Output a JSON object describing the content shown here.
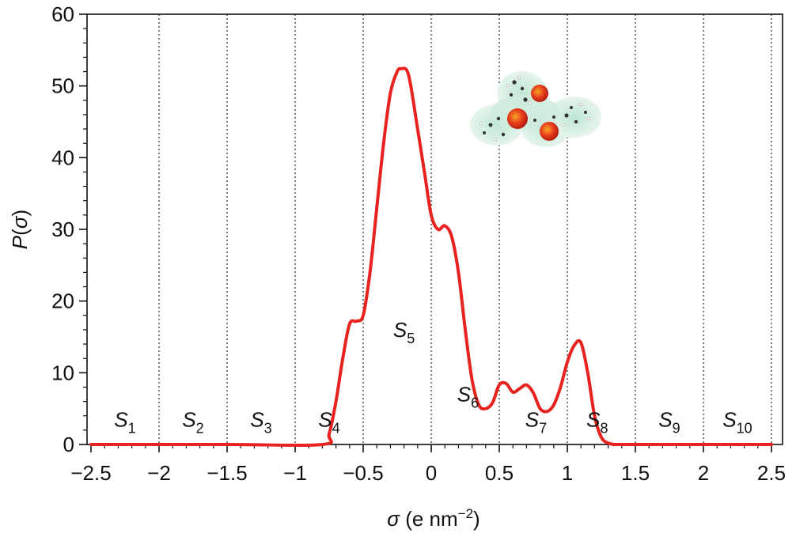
{
  "chart_data": {
    "type": "line",
    "xlabel_symbol": "σ",
    "xlabel_unit_text": " (e nm",
    "xlabel_unit_sup": "−2",
    "xlabel_unit_close": ")",
    "ylabel_symbol": "P",
    "ylabel_open": "(",
    "ylabel_inner": "σ",
    "ylabel_close": ")",
    "xlim": [
      -2.5,
      2.5
    ],
    "ylim": [
      0,
      60
    ],
    "x_ticks": [
      -2.5,
      -2,
      -1.5,
      -1,
      -0.5,
      0,
      0.5,
      1,
      1.5,
      2,
      2.5
    ],
    "x_tick_labels": [
      "−2.5",
      "−2",
      "−1.5",
      "−1",
      "−0.5",
      "0",
      "0.5",
      "1",
      "1.5",
      "2",
      "2.5"
    ],
    "y_ticks": [
      0,
      10,
      20,
      30,
      40,
      50,
      60
    ],
    "y_tick_labels": [
      "0",
      "10",
      "20",
      "30",
      "40",
      "50",
      "60"
    ],
    "grid": "vertical dotted lines at every 0.5",
    "line_color": "#e8231f",
    "series": [
      {
        "x": [
          -2.5,
          -1.5,
          -0.8,
          -0.75,
          -0.7,
          -0.65,
          -0.6,
          -0.55,
          -0.5,
          -0.45,
          -0.4,
          -0.35,
          -0.3,
          -0.25,
          -0.22,
          -0.18,
          -0.15,
          -0.1,
          -0.05,
          0,
          0.05,
          0.1,
          0.15,
          0.2,
          0.25,
          0.3,
          0.35,
          0.4,
          0.45,
          0.5,
          0.55,
          0.6,
          0.65,
          0.7,
          0.75,
          0.8,
          0.85,
          0.9,
          0.95,
          1.0,
          1.05,
          1.1,
          1.15,
          1.2,
          1.25,
          1.3,
          1.35,
          1.4,
          2.0,
          2.5
        ],
        "y": [
          0,
          0,
          0,
          1.5,
          6,
          12,
          16.8,
          17.2,
          18,
          24,
          33,
          42,
          49,
          52,
          52.4,
          52.2,
          50,
          44,
          38,
          32,
          30,
          30.5,
          29,
          24,
          16,
          9,
          5.5,
          5,
          5.8,
          8.3,
          8.5,
          7.3,
          7.8,
          8.3,
          7.2,
          5,
          4.6,
          5.5,
          8,
          11.5,
          13.8,
          14.2,
          10,
          4,
          1,
          0.2,
          0,
          0,
          0,
          0
        ]
      }
    ],
    "segments": [
      {
        "s": "S",
        "sub": "1"
      },
      {
        "s": "S",
        "sub": "2"
      },
      {
        "s": "S",
        "sub": "3"
      },
      {
        "s": "S",
        "sub": "4"
      },
      {
        "s": "S",
        "sub": "5"
      },
      {
        "s": "S",
        "sub": "6"
      },
      {
        "s": "S",
        "sub": "7"
      },
      {
        "s": "S",
        "sub": "8"
      },
      {
        "s": "S",
        "sub": "9"
      },
      {
        "s": "S",
        "sub": "10"
      }
    ],
    "inset": "molecule-surface-image"
  }
}
